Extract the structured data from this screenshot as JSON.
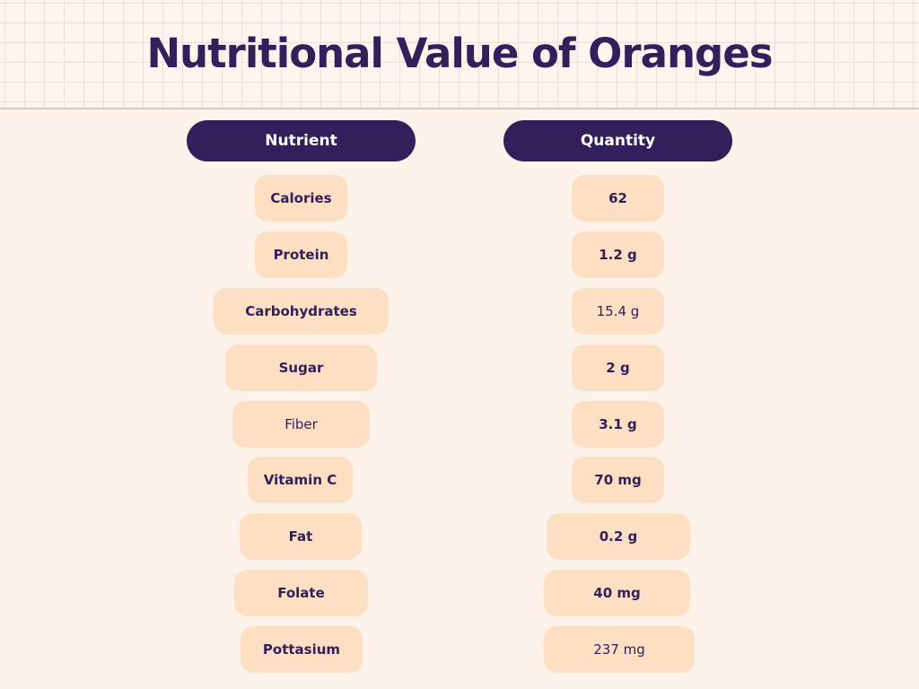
{
  "title": "Nutritional Value of Oranges",
  "headers": {
    "nutrient": "Nutrient",
    "quantity": "Quantity"
  },
  "rows": [
    {
      "nutrient": "Calories",
      "quantity": "62"
    },
    {
      "nutrient": "Protein",
      "quantity": "1.2 g"
    },
    {
      "nutrient": "Carbohydrates",
      "quantity": "15.4 g"
    },
    {
      "nutrient": "Sugar",
      "quantity": "2 g"
    },
    {
      "nutrient": "Fiber",
      "quantity": "3.1 g"
    },
    {
      "nutrient": "Vitamin C",
      "quantity": "70 mg"
    },
    {
      "nutrient": "Fat",
      "quantity": "0.2 g"
    },
    {
      "nutrient": "Folate",
      "quantity": "40 mg"
    },
    {
      "nutrient": "Pottasium",
      "quantity": "237 mg"
    }
  ],
  "colors": {
    "background": "#fdf3ea",
    "header_pill": "#33205a",
    "cell_pill": "#fde0c4",
    "text": "#33205a"
  }
}
